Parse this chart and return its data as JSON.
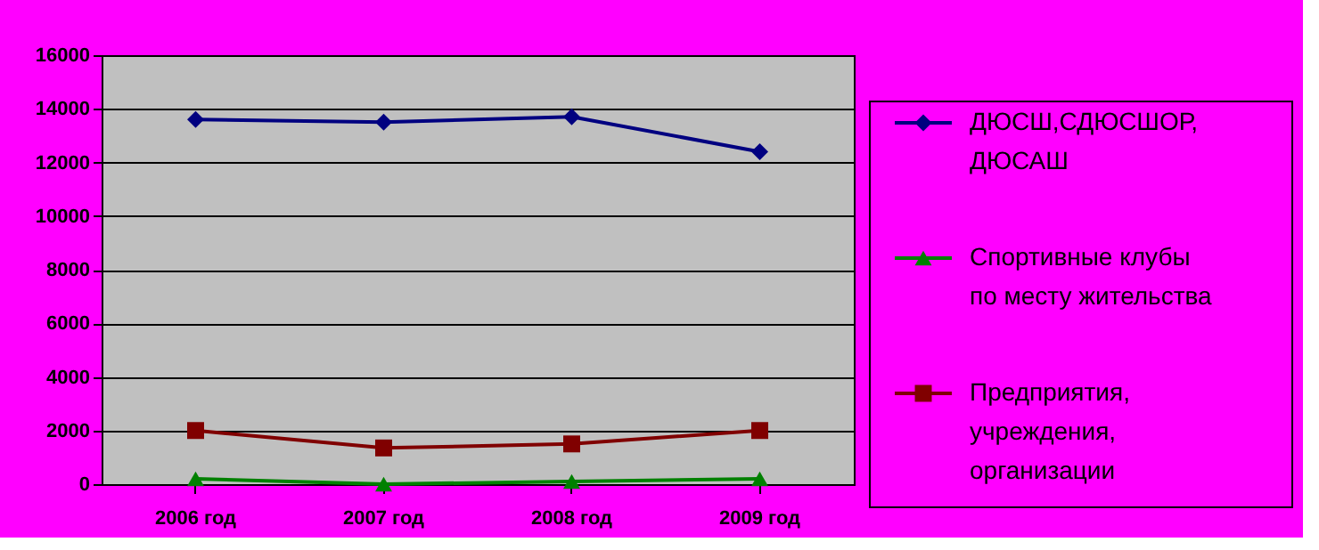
{
  "chart_data": {
    "type": "line",
    "categories": [
      "2006 год",
      "2007 год",
      "2008 год",
      "2009 год"
    ],
    "series": [
      {
        "name": "ДЮСШ,СДЮСШОР, ДЮСАШ",
        "color": "#000080",
        "marker": "diamond",
        "values": [
          13600,
          13500,
          13700,
          12400
        ]
      },
      {
        "name": "Спортивные клубы по месту жительства",
        "color": "#008000",
        "marker": "triangle",
        "values": [
          200,
          0,
          100,
          200
        ]
      },
      {
        "name": "Предприятия, учреждения, организации",
        "color": "#800000",
        "marker": "square",
        "values": [
          2000,
          1350,
          1500,
          2000
        ]
      }
    ],
    "ylim": [
      0,
      16000
    ],
    "yticks": [
      0,
      2000,
      4000,
      6000,
      8000,
      10000,
      12000,
      14000,
      16000
    ],
    "grid": "y",
    "legend": "right",
    "line_style": "solid"
  }
}
